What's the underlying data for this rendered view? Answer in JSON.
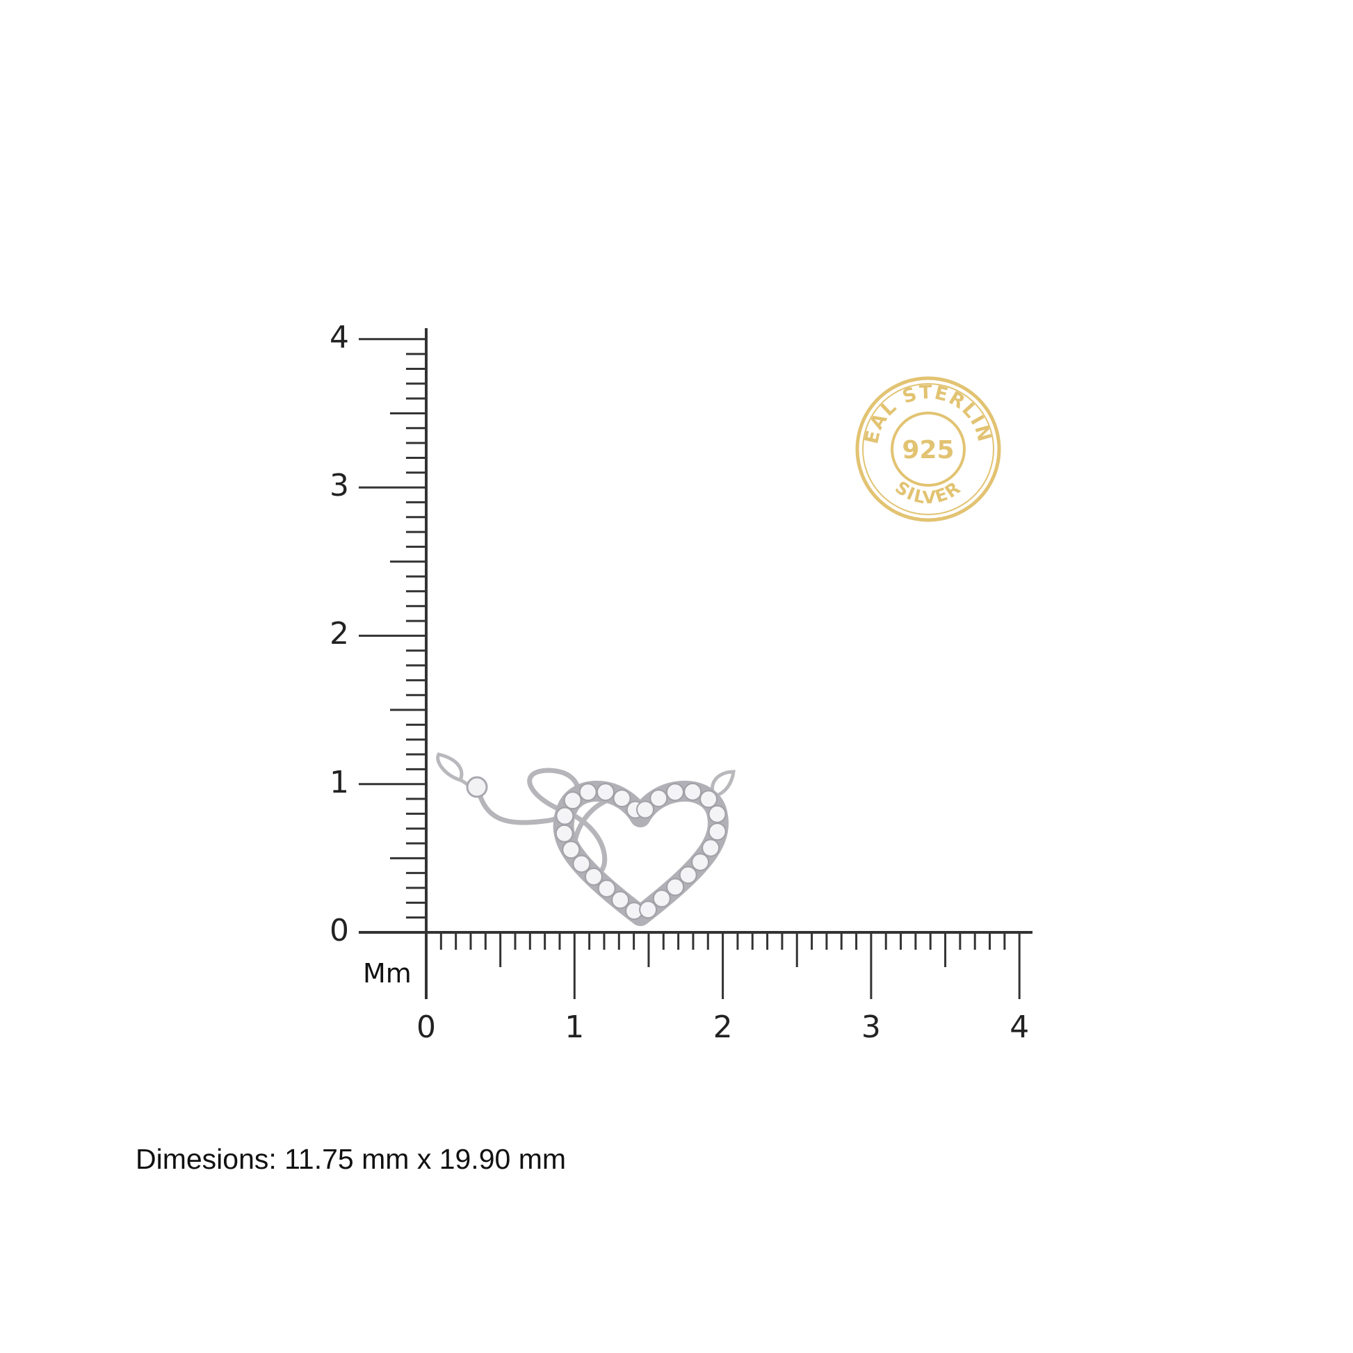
{
  "ruler": {
    "unit_label": "Mm",
    "y_ticks": [
      "0",
      "1",
      "2",
      "3",
      "4"
    ],
    "x_ticks": [
      "0",
      "1",
      "2",
      "3",
      "4"
    ],
    "range": [
      0,
      4
    ],
    "minor_step": 0.1,
    "line_color": "#333333"
  },
  "badge": {
    "top_text": "REAL STERLING",
    "center_text": "925",
    "bottom_text": "SILVER",
    "color": "#E2C372"
  },
  "product": {
    "description_icon": "heart-infinity-pendant",
    "metal_color": "#C8C8CC"
  },
  "caption": "Dimesions: 11.75 mm x 19.90 mm"
}
